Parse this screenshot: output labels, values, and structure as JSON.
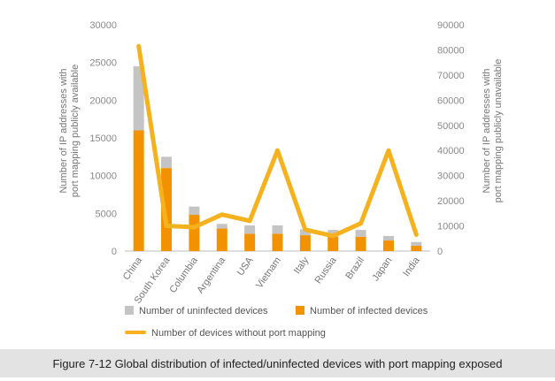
{
  "caption": "Figure 7-12 Global distribution of infected/uninfected devices with port mapping exposed",
  "chart_data": {
    "type": "bar",
    "stacked": true,
    "categories": [
      "China",
      "South Korea",
      "Columbia",
      "Argentina",
      "USA",
      "Vietnam",
      "Italy",
      "Russia",
      "Brazil",
      "Japan",
      "India"
    ],
    "left_axis": {
      "label": "Number of IP addresses with port mapping publicly available",
      "ylim": [
        0,
        30000
      ],
      "ticks": [
        "0",
        "5000",
        "10000",
        "15000",
        "20000",
        "25000",
        "30000"
      ]
    },
    "right_axis": {
      "label": "Number of IP addresses with port mapping publicly unavailable",
      "ylim": [
        0,
        90000
      ],
      "ticks": [
        "0",
        "10000",
        "20000",
        "30000",
        "40000",
        "50000",
        "60000",
        "70000",
        "80000",
        "90000"
      ]
    },
    "series": [
      {
        "name": "Number of infected devices",
        "kind": "bar",
        "axis": "left",
        "color": "#f39200",
        "values": [
          16000,
          11000,
          4800,
          3000,
          2300,
          2300,
          2100,
          1900,
          1900,
          1400,
          700
        ]
      },
      {
        "name": "Number of uninfected devices",
        "kind": "bar",
        "axis": "left",
        "color": "#c4c4c4",
        "values": [
          8500,
          1500,
          1100,
          600,
          1100,
          1100,
          800,
          900,
          900,
          600,
          500
        ]
      },
      {
        "name": "Number of devices without port mapping",
        "kind": "line",
        "axis": "right",
        "color": "#f5b11e",
        "values": [
          81500,
          10000,
          9500,
          14500,
          12000,
          40000,
          8500,
          6000,
          11000,
          40000,
          6500
        ]
      }
    ],
    "grid": false
  }
}
